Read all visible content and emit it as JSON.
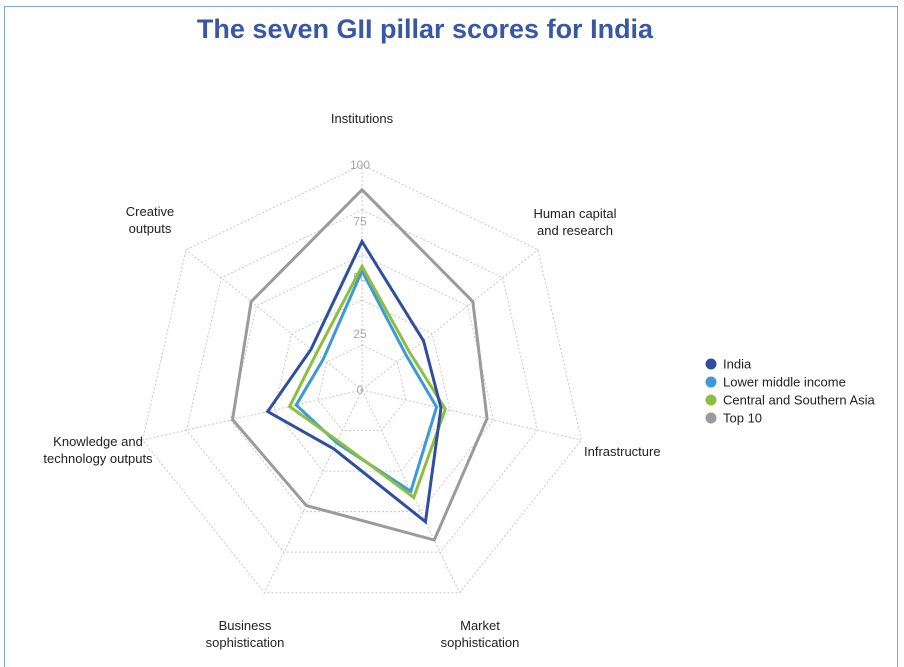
{
  "chart_data": {
    "type": "radar",
    "title": "The seven GII pillar scores for India",
    "axes": [
      [
        "Institutions"
      ],
      [
        "Human capital",
        "and research"
      ],
      [
        "Infrastructure"
      ],
      [
        "Market",
        "sophistication"
      ],
      [
        "Business",
        "sophistication"
      ],
      [
        "Knowledge and",
        "technology outputs"
      ],
      [
        "Creative",
        "outputs"
      ]
    ],
    "range": [
      0,
      100
    ],
    "ticks": [
      "0",
      "25",
      "50",
      "75",
      "100"
    ],
    "grid": true,
    "legend_position": "right",
    "series": [
      {
        "name": "India",
        "color": "#2f4f9e",
        "values": [
          66,
          35,
          36,
          65,
          29,
          43,
          29
        ]
      },
      {
        "name": "Lower middle income",
        "color": "#3d9ad6",
        "values": [
          53,
          25,
          34,
          50,
          26,
          30,
          22
        ]
      },
      {
        "name": "Central and Southern Asia",
        "color": "#8dbf3e",
        "values": [
          55,
          27,
          38,
          53,
          25,
          33,
          26
        ]
      },
      {
        "name": "Top 10",
        "color": "#9b9b9f",
        "values": [
          89,
          63,
          57,
          74,
          57,
          59,
          63
        ]
      }
    ]
  }
}
